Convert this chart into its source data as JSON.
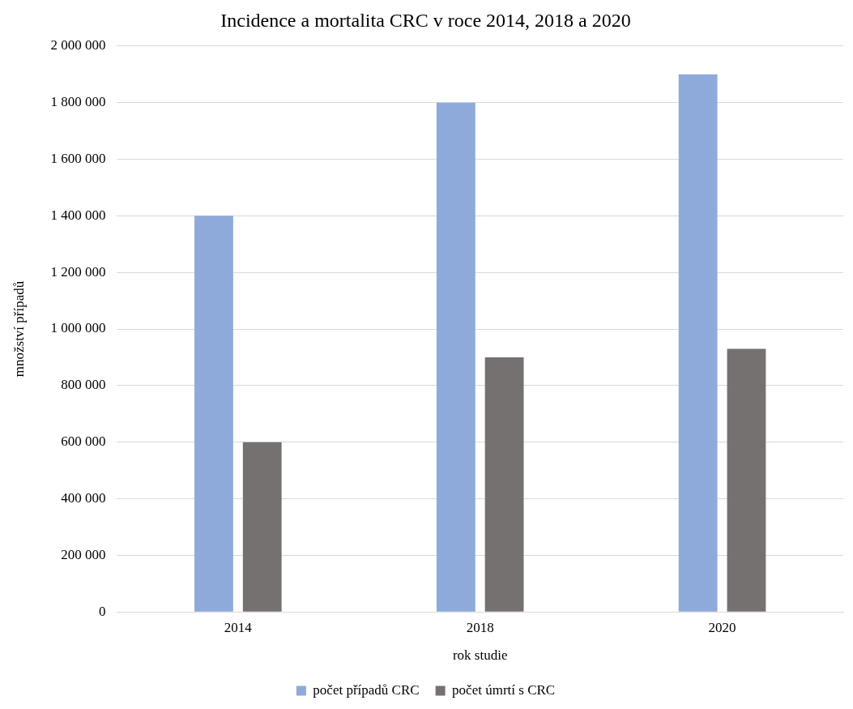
{
  "chart_data": {
    "type": "bar",
    "title": "Incidence a mortalita CRC v roce 2014, 2018 a 2020",
    "xlabel": "rok studie",
    "ylabel": "množství případů",
    "categories": [
      "2014",
      "2018",
      "2020"
    ],
    "series": [
      {
        "name": "počet případů CRC",
        "color": "#8eaadb",
        "values": [
          1400000,
          1800000,
          1900000
        ]
      },
      {
        "name": "počet úmrtí s CRC",
        "color": "#767171",
        "values": [
          600000,
          900000,
          930000
        ]
      }
    ],
    "ylim": [
      0,
      2000000
    ],
    "yticks": [
      {
        "value": 0,
        "label": "0"
      },
      {
        "value": 200000,
        "label": "200 000"
      },
      {
        "value": 400000,
        "label": "400 000"
      },
      {
        "value": 600000,
        "label": "600 000"
      },
      {
        "value": 800000,
        "label": "800 000"
      },
      {
        "value": 1000000,
        "label": "1 000 000"
      },
      {
        "value": 1200000,
        "label": "1 200 000"
      },
      {
        "value": 1400000,
        "label": "1 400 000"
      },
      {
        "value": 1600000,
        "label": "1 600 000"
      },
      {
        "value": 1800000,
        "label": "1 800 000"
      },
      {
        "value": 2000000,
        "label": "2 000 000"
      }
    ],
    "grid": "y",
    "legend": "bottom"
  }
}
